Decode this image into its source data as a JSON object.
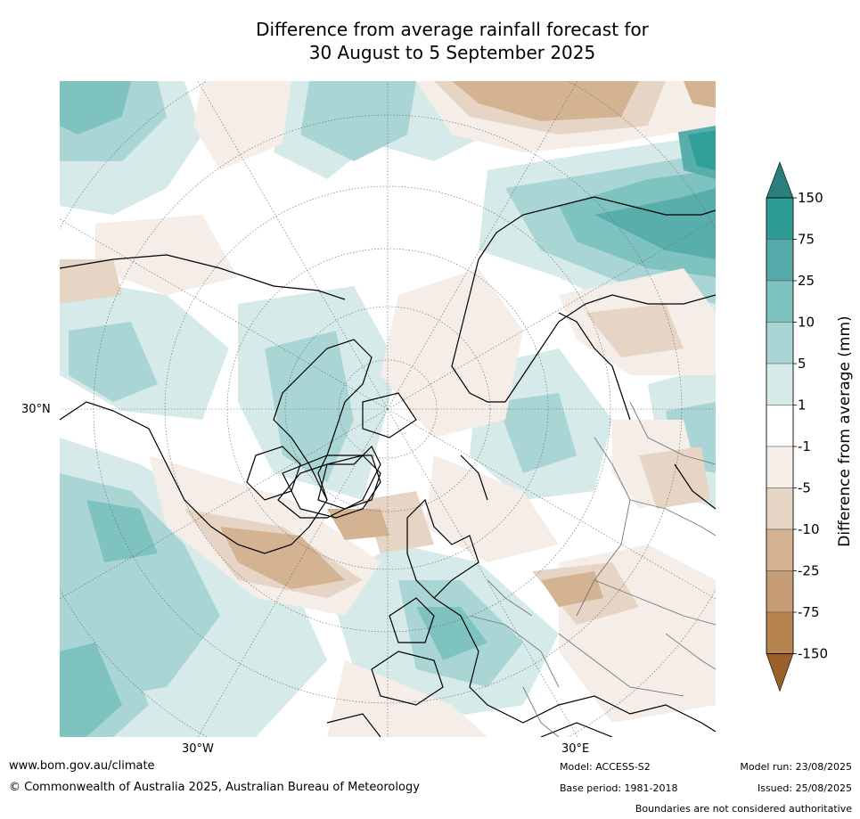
{
  "title": {
    "line1": "Difference from average rainfall forecast for",
    "line2": "30 August to 5 September 2025"
  },
  "map": {
    "projection": "polar stereographic (north)",
    "lat_label": "30°N",
    "lon_labels": [
      "30°W",
      "30°E"
    ],
    "colors": {
      "green_light": "#d6ebe9",
      "green_mid": "#a9d6d4",
      "green_med": "#7fc3c0",
      "green_dark": "#57aeab",
      "green_deep": "#31a099",
      "brown_light": "#f4ede8",
      "brown_mid": "#e6d4c4",
      "brown_med": "#d3b392"
    }
  },
  "colorbar": {
    "title": "Difference from average (mm)",
    "ticks": [
      "150",
      "75",
      "25",
      "10",
      "5",
      "1",
      "-1",
      "-5",
      "-10",
      "-25",
      "-75",
      "-150"
    ],
    "colors": [
      "#287f7b",
      "#2f9b95",
      "#55aba9",
      "#7fc3c0",
      "#a9d6d4",
      "#d6ebe9",
      "#ffffff",
      "#f4ede8",
      "#e6d4c4",
      "#d3b392",
      "#c59c74",
      "#b58451",
      "#9a602c"
    ]
  },
  "footer": {
    "website": "www.bom.gov.au/climate",
    "copyright": "© Commonwealth of Australia 2025, Australian Bureau of Meteorology",
    "model": "Model: ACCESS-S2",
    "base_period": "Base period: 1981-2018",
    "model_run": "Model run: 23/08/2025",
    "issued": "Issued: 25/08/2025",
    "disclaimer": "Boundaries are not considered authoritative"
  }
}
